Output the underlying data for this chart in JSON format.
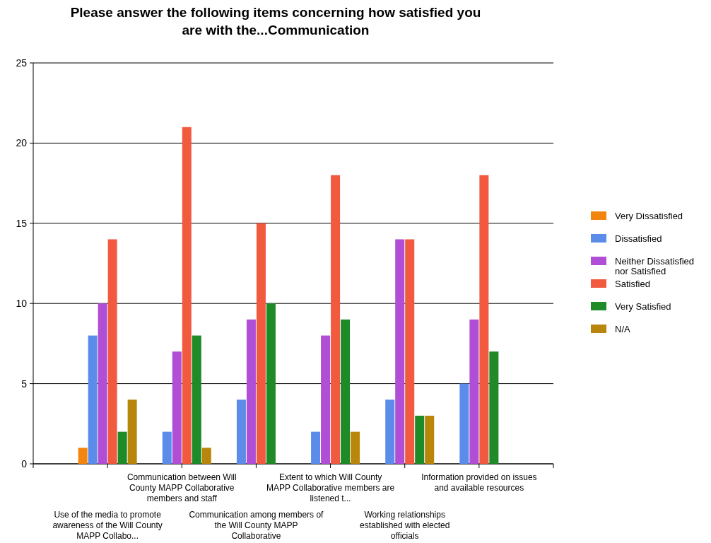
{
  "chart_data": {
    "type": "bar",
    "title": "Please answer the following items concerning how satisfied you are with the...Communication",
    "categories": [
      "Use of the media to promote awareness of the Will County MAPP Collabo...",
      "Communication between Will County MAPP Collaborative members and staff",
      "Communication among members of the Will County MAPP Collaborative",
      "Extent to which Will County MAPP Collaborative members are listened t...",
      "Working relationships established with elected officials",
      "Information provided on issues and available resources"
    ],
    "series": [
      {
        "name": "Very Dissatisfied",
        "color": "#f2860c",
        "values": [
          1,
          0,
          0,
          0,
          0,
          0
        ]
      },
      {
        "name": "Dissatisfied",
        "color": "#5b8cea",
        "values": [
          8,
          2,
          4,
          2,
          4,
          5
        ]
      },
      {
        "name": "Neither Dissatisfied nor Satisfied",
        "color": "#b04ed6",
        "values": [
          10,
          7,
          9,
          8,
          14,
          9
        ]
      },
      {
        "name": "Satisfied",
        "color": "#f25a40",
        "values": [
          14,
          21,
          15,
          18,
          14,
          18
        ]
      },
      {
        "name": "Very Satisfied",
        "color": "#1e8a28",
        "values": [
          2,
          8,
          10,
          9,
          3,
          7
        ]
      },
      {
        "name": "N/A",
        "color": "#b8860b",
        "values": [
          4,
          1,
          0,
          2,
          3,
          0
        ]
      }
    ],
    "ylim": [
      0,
      25
    ],
    "yticks": [
      0,
      5,
      10,
      15,
      20,
      25
    ],
    "grid": "y",
    "legend": "right"
  }
}
